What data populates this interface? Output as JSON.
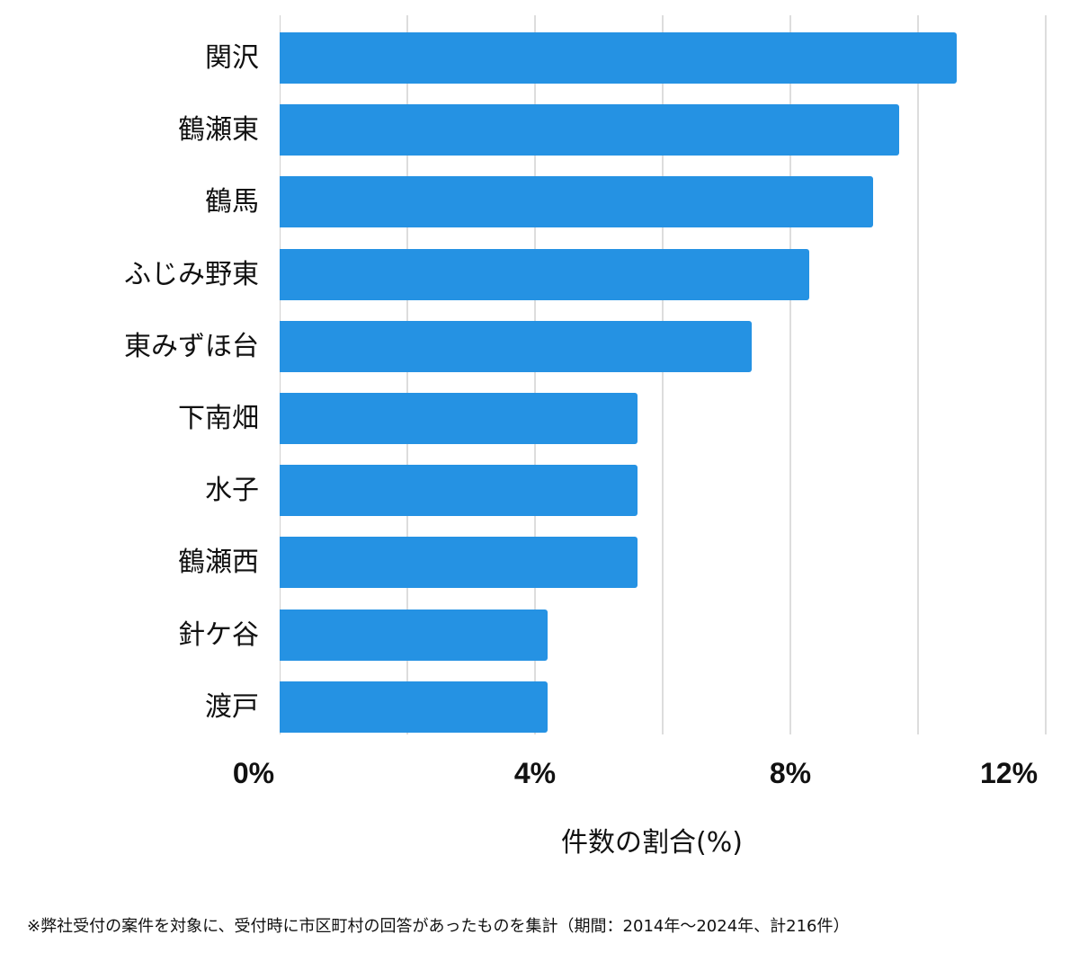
{
  "chart_data": {
    "type": "bar",
    "orientation": "horizontal",
    "title": "",
    "categories": [
      "関沢",
      "鶴瀬東",
      "鶴馬",
      "ふじみ野東",
      "東みずほ台",
      "下南畑",
      "水子",
      "鶴瀬西",
      "針ケ谷",
      "渡戸"
    ],
    "values": [
      10.6,
      9.7,
      9.3,
      8.3,
      7.4,
      5.6,
      5.6,
      5.6,
      4.2,
      4.2
    ],
    "xlabel": "件数の割合(%)",
    "ylabel": "",
    "xlim": [
      0,
      12
    ],
    "x_ticks": [
      "0%",
      "4%",
      "8%",
      "12%"
    ],
    "grid": true,
    "grid_step": 2,
    "bar_color": "#2592e3",
    "footnote": "※弊社受付の案件を対象に、受付時に市区町村の回答があったものを集計（期間：2014年～2024年、計216件）"
  },
  "axis": {
    "ticks": [
      "0%",
      "4%",
      "8%",
      "12%"
    ],
    "xlabel": "件数の割合(%)"
  },
  "footnote": "※弊社受付の案件を対象に、受付時に市区町村の回答があったものを集計（期間：2014年～2024年、計216件）"
}
